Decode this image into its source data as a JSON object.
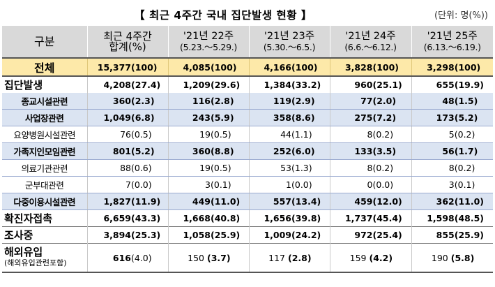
{
  "title": "【 최근 4주간 국내 집단발생 현황 】",
  "unit": "(단위: 명(%))",
  "header": {
    "category": "구분",
    "recent": "최근 4주간 합계(%)",
    "weeks": [
      {
        "label": "'21년 22주",
        "range": "(5.23.～5.29.)"
      },
      {
        "label": "'21년 23주",
        "range": "(5.30.～6.5.)"
      },
      {
        "label": "'21년 24주",
        "range": "(6.6.～6.12.)"
      },
      {
        "label": "'21년 25주",
        "range": "(6.13.～6.19.)"
      }
    ]
  },
  "rows": [
    {
      "label": "전체",
      "values": [
        [
          "15,377",
          "(100)"
        ],
        [
          "4,085",
          "(100)"
        ],
        [
          "4,166",
          "(100)"
        ],
        [
          "3,828",
          "(100)"
        ],
        [
          "3,298",
          "(100)"
        ]
      ]
    },
    {
      "label": "집단발생",
      "values": [
        [
          "4,208",
          "(27.4)"
        ],
        [
          "1,209",
          "(29.6)"
        ],
        [
          "1,384",
          "(33.2)"
        ],
        [
          "960",
          "(25.1)"
        ],
        [
          "655",
          "(19.9)"
        ]
      ]
    },
    {
      "label": "종교시설관련",
      "values": [
        [
          "360",
          "(2.3)"
        ],
        [
          "116",
          "(2.8)"
        ],
        [
          "119",
          "(2.9)"
        ],
        [
          "77",
          "(2.0)"
        ],
        [
          "48",
          "(1.5)"
        ]
      ]
    },
    {
      "label": "사업장관련",
      "values": [
        [
          "1,049",
          "(6.8)"
        ],
        [
          "243",
          "(5.9)"
        ],
        [
          "358",
          "(8.6)"
        ],
        [
          "275",
          "(7.2)"
        ],
        [
          "173",
          "(5.2)"
        ]
      ]
    },
    {
      "label": "요양병원시설관련",
      "values": [
        [
          "76",
          "(0.5)"
        ],
        [
          "19",
          "(0.5)"
        ],
        [
          "44",
          "(1.1)"
        ],
        [
          "8",
          "(0.2)"
        ],
        [
          "5",
          "(0.2)"
        ]
      ]
    },
    {
      "label": "가족지인모임관련",
      "values": [
        [
          "801",
          "(5.2)"
        ],
        [
          "360",
          "(8.8)"
        ],
        [
          "252",
          "(6.0)"
        ],
        [
          "133",
          "(3.5)"
        ],
        [
          "56",
          "(1.7)"
        ]
      ]
    },
    {
      "label": "의료기관관련",
      "values": [
        [
          "88",
          "(0.6)"
        ],
        [
          "19",
          "(0.5)"
        ],
        [
          "53",
          "(1.3)"
        ],
        [
          "8",
          "(0.2)"
        ],
        [
          "8",
          "(0.2)"
        ]
      ]
    },
    {
      "label": "군부대관련",
      "values": [
        [
          "7",
          "(0.0)"
        ],
        [
          "3",
          "(0.1)"
        ],
        [
          "1",
          "(0.0)"
        ],
        [
          "0",
          "(0.0)"
        ],
        [
          "3",
          "(0.1)"
        ]
      ]
    },
    {
      "label": "다중이용시설관련",
      "values": [
        [
          "1,827",
          "(11.9)"
        ],
        [
          "449",
          "(11.0)"
        ],
        [
          "557",
          "(13.4)"
        ],
        [
          "459",
          "(12.0)"
        ],
        [
          "362",
          "(11.0)"
        ]
      ]
    },
    {
      "label": "확진자접촉",
      "values": [
        [
          "6,659",
          "(43.3)"
        ],
        [
          "1,668",
          "(40.8)"
        ],
        [
          "1,656",
          "(39.8)"
        ],
        [
          "1,737",
          "(45.4)"
        ],
        [
          "1,598",
          "(48.5)"
        ]
      ]
    },
    {
      "label": "조사중",
      "values": [
        [
          "3,894",
          "(25.3)"
        ],
        [
          "1,058",
          "(25.9)"
        ],
        [
          "1,009",
          "(24.2)"
        ],
        [
          "972",
          "(25.4)"
        ],
        [
          "855",
          "(25.9)"
        ]
      ]
    },
    {
      "label": "해외유입",
      "sublabel": "(해외유입관련포함)",
      "values": [
        [
          "616",
          "(4.0)"
        ],
        [
          "150",
          "(3.7)"
        ],
        [
          "117",
          "(2.8)"
        ],
        [
          "159",
          "(4.2)"
        ],
        [
          "190",
          "(5.8)"
        ]
      ]
    }
  ]
}
